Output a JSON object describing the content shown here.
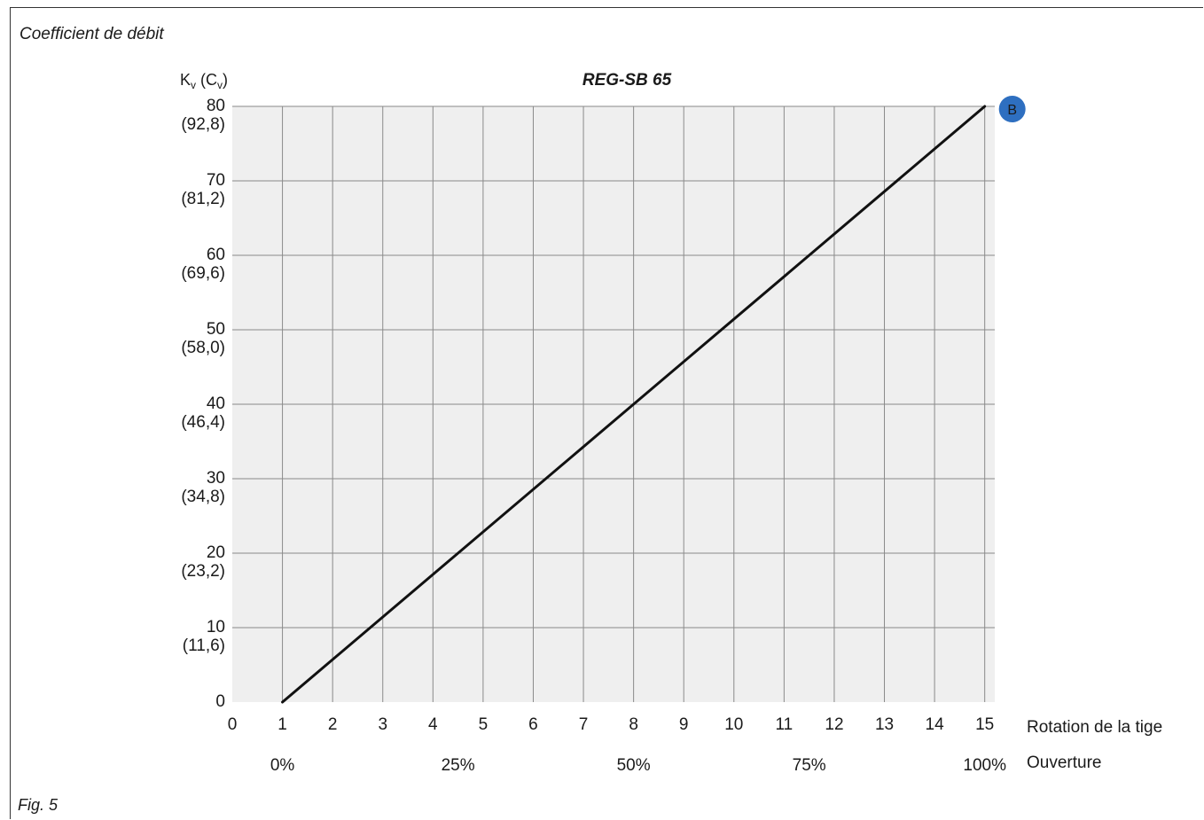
{
  "section_title": "Coefficient de débit",
  "figure_caption": "Fig. 5",
  "chart_data": {
    "type": "line",
    "title": "REG-SB 65",
    "ylabel": {
      "main": "K",
      "main_sub": "v",
      "paren_open": " (C",
      "paren_sub": "v",
      "paren_close": ")"
    },
    "xlabel": "Rotation de la tige",
    "x2label": "Ouverture",
    "xlim": [
      0,
      15.2
    ],
    "ylim": [
      0,
      80
    ],
    "grid": true,
    "x_ticks": [
      "0",
      "1",
      "2",
      "3",
      "4",
      "5",
      "6",
      "7",
      "8",
      "9",
      "10",
      "11",
      "12",
      "13",
      "14",
      "15"
    ],
    "x_tick_values": [
      0,
      1,
      2,
      3,
      4,
      5,
      6,
      7,
      8,
      9,
      10,
      11,
      12,
      13,
      14,
      15
    ],
    "y_ticks": [
      {
        "value": 0,
        "kv": "0",
        "cv": ""
      },
      {
        "value": 10,
        "kv": "10",
        "cv": "(11,6)"
      },
      {
        "value": 20,
        "kv": "20",
        "cv": "(23,2)"
      },
      {
        "value": 30,
        "kv": "30",
        "cv": "(34,8)"
      },
      {
        "value": 40,
        "kv": "40",
        "cv": "(46,4)"
      },
      {
        "value": 50,
        "kv": "50",
        "cv": "(58,0)"
      },
      {
        "value": 60,
        "kv": "60",
        "cv": "(69,6)"
      },
      {
        "value": 70,
        "kv": "70",
        "cv": "(81,2)"
      },
      {
        "value": 80,
        "kv": "80",
        "cv": "(92,8)"
      }
    ],
    "opening_ticks": [
      {
        "x": 1,
        "label": "0%"
      },
      {
        "x": 4.5,
        "label": "25%"
      },
      {
        "x": 8,
        "label": "50%"
      },
      {
        "x": 11.5,
        "label": "75%"
      },
      {
        "x": 15,
        "label": "100%"
      }
    ],
    "series": [
      {
        "x": [
          1,
          15
        ],
        "y": [
          0,
          80
        ],
        "color": "#111111"
      }
    ],
    "marker": {
      "label": "B",
      "x": 15,
      "y": 80,
      "color": "#2e6fc0"
    }
  }
}
